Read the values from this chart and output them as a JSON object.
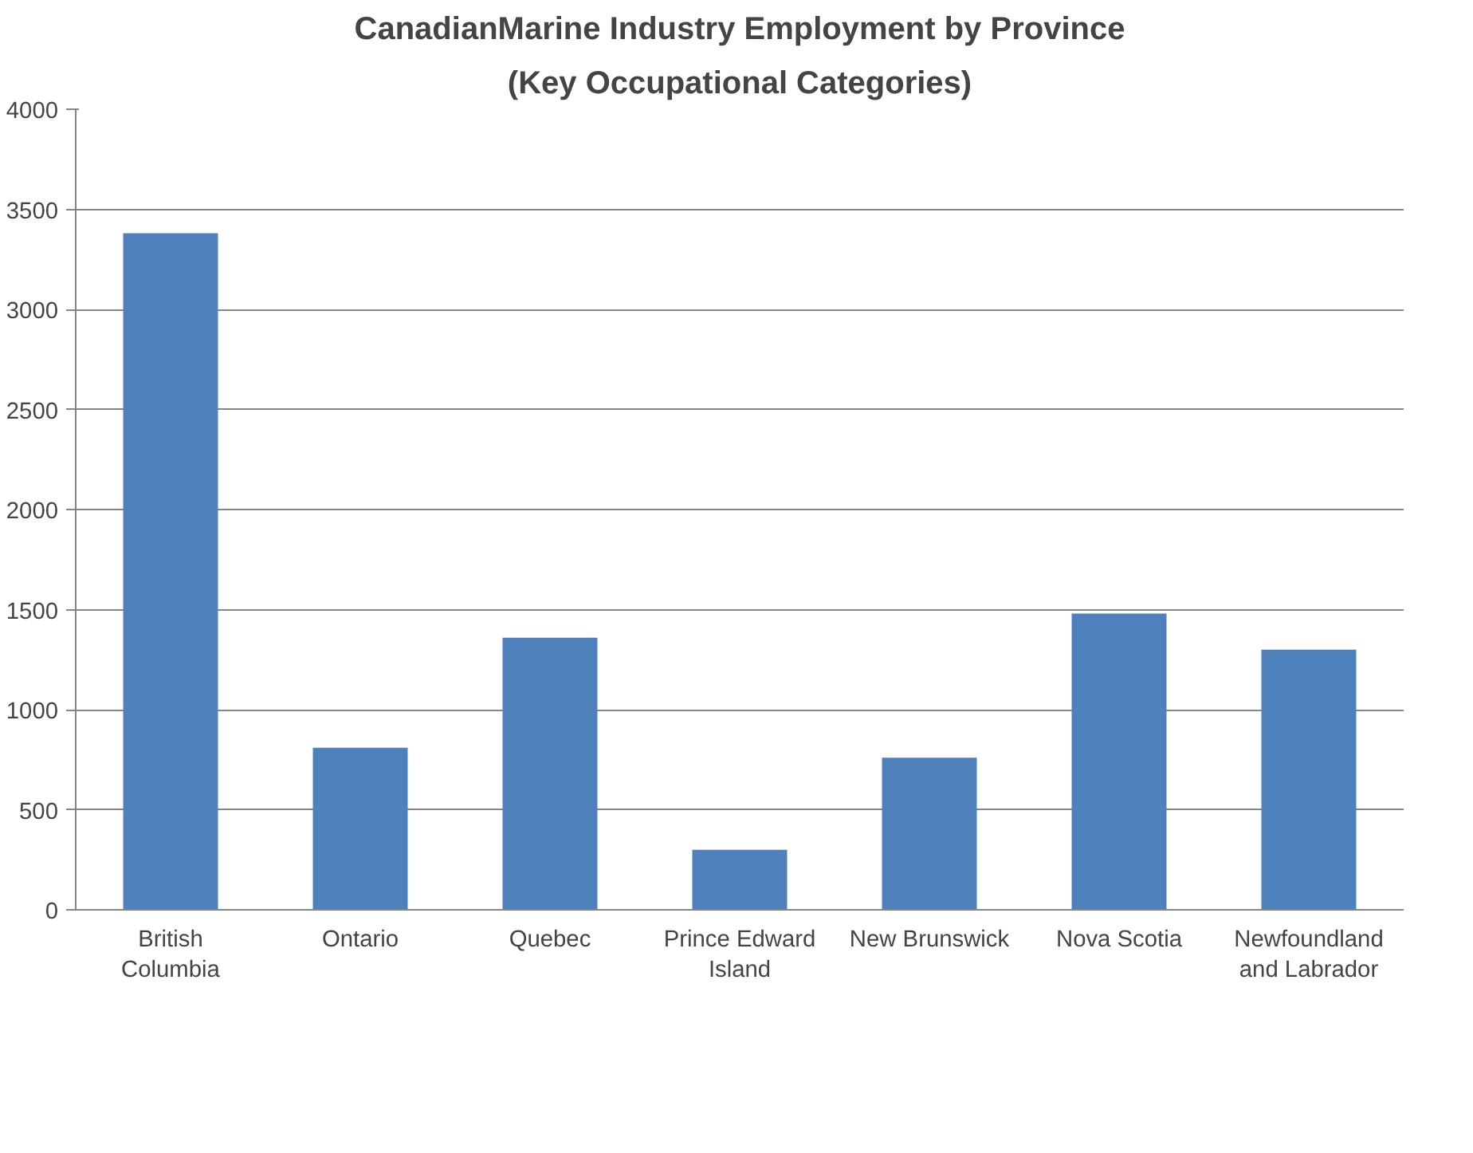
{
  "chart_data": {
    "type": "bar",
    "title": "CanadianMarine Industry Employment by Province",
    "subtitle": "(Key Occupational Categories)",
    "categories": [
      "British Columbia",
      "Ontario",
      "Quebec",
      "Prince Edward Island",
      "New Brunswick",
      "Nova Scotia",
      "Newfoundland and Labrador"
    ],
    "values": [
      3380,
      810,
      1360,
      300,
      760,
      1480,
      1300
    ],
    "color": "#4f81bd",
    "ylim": [
      0,
      4000
    ],
    "yticks": [
      0,
      500,
      1000,
      1500,
      2000,
      2500,
      3000,
      3500,
      4000
    ],
    "grid": "y"
  }
}
